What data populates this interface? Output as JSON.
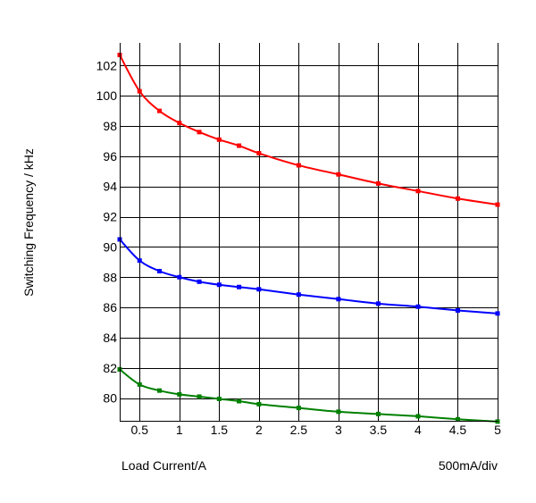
{
  "chart_data": {
    "type": "line",
    "ylabel": "Switching Frequency / kHz",
    "xlabel": "Load Current/A",
    "scale_note": "500mA/div",
    "xlim": [
      0.25,
      5
    ],
    "ylim": [
      78.5,
      103.5
    ],
    "x_ticks": [
      0.5,
      1,
      1.5,
      2,
      2.5,
      3,
      3.5,
      4,
      4.5,
      5
    ],
    "x_tick_labels": [
      "0.5",
      "1",
      "1.5",
      "2",
      "2.5",
      "3",
      "3.5",
      "4",
      "4.5",
      "5"
    ],
    "y_ticks": [
      80,
      82,
      84,
      86,
      88,
      90,
      92,
      94,
      96,
      98,
      100,
      102
    ],
    "y_tick_labels": [
      "80",
      "82",
      "84",
      "86",
      "88",
      "90",
      "92",
      "94",
      "96",
      "98",
      "100",
      "102"
    ],
    "grid": true,
    "series": [
      {
        "color": "#ff0000",
        "x": [
          0.25,
          0.5,
          0.75,
          1,
          1.25,
          1.5,
          1.75,
          2,
          2.5,
          3,
          3.5,
          4,
          4.5,
          5
        ],
        "values": [
          102.7,
          100.3,
          99.0,
          98.2,
          97.6,
          97.1,
          96.7,
          96.2,
          95.4,
          94.8,
          94.2,
          93.7,
          93.2,
          92.8
        ]
      },
      {
        "color": "#0000ff",
        "x": [
          0.25,
          0.5,
          0.75,
          1,
          1.25,
          1.5,
          1.75,
          2,
          2.5,
          3,
          3.5,
          4,
          4.5,
          5
        ],
        "values": [
          90.5,
          89.1,
          88.4,
          88.0,
          87.7,
          87.5,
          87.35,
          87.2,
          86.85,
          86.55,
          86.25,
          86.05,
          85.8,
          85.6
        ]
      },
      {
        "color": "#008000",
        "x": [
          0.25,
          0.5,
          0.75,
          1,
          1.25,
          1.5,
          1.75,
          2,
          2.5,
          3,
          3.5,
          4,
          4.5,
          5
        ],
        "values": [
          81.9,
          80.9,
          80.5,
          80.25,
          80.1,
          79.95,
          79.8,
          79.6,
          79.35,
          79.1,
          78.95,
          78.8,
          78.6,
          78.45
        ]
      }
    ]
  }
}
